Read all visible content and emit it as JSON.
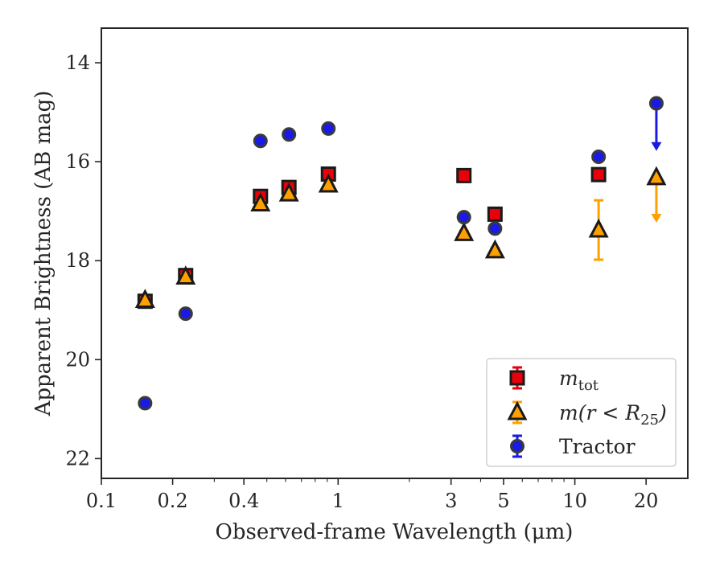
{
  "chart_data": {
    "type": "scatter",
    "xlabel": "Observed-frame Wavelength (μm)",
    "ylabel": "Apparent Brightness (AB mag)",
    "x_scale": "log",
    "xlim": [
      0.1,
      30
    ],
    "ylim": [
      22.4,
      13.3
    ],
    "y_inverted": true,
    "x_ticks": [
      0.1,
      0.2,
      0.4,
      1,
      3,
      5,
      10,
      20
    ],
    "x_tick_labels": [
      "0.1",
      "0.2",
      "0.4",
      "1",
      "3",
      "5",
      "10",
      "20"
    ],
    "y_ticks": [
      14,
      16,
      18,
      20,
      22
    ],
    "y_tick_labels": [
      "14",
      "16",
      "18",
      "20",
      "22"
    ],
    "grid": false,
    "legend_position": "bottom-right",
    "series": [
      {
        "name": "m_tot",
        "label_main": "m",
        "label_sub": "tot",
        "marker": "square",
        "color": "#e8000b",
        "edge_color": "#1a1a1a",
        "points": [
          {
            "x": 0.153,
            "y": 18.82,
            "err": 0.05
          },
          {
            "x": 0.227,
            "y": 18.3,
            "err": 0.05
          },
          {
            "x": 0.47,
            "y": 16.7,
            "err": 0.05
          },
          {
            "x": 0.62,
            "y": 16.52,
            "err": 0.05
          },
          {
            "x": 0.91,
            "y": 16.25,
            "err": 0.05
          },
          {
            "x": 3.4,
            "y": 16.28,
            "err": 0.05
          },
          {
            "x": 4.6,
            "y": 17.06,
            "err": 0.05
          },
          {
            "x": 12.6,
            "y": 16.26,
            "err": 0.05
          }
        ]
      },
      {
        "name": "m(r<R25)",
        "label_main": "m(r < R",
        "label_sub": "25",
        "label_tail": ")",
        "marker": "triangle",
        "color": "#ff9f00",
        "edge_color": "#1a1a1a",
        "points": [
          {
            "x": 0.153,
            "y": 18.8,
            "err": 0.05
          },
          {
            "x": 0.227,
            "y": 18.33,
            "err": 0.05
          },
          {
            "x": 0.47,
            "y": 16.85,
            "err": 0.05
          },
          {
            "x": 0.62,
            "y": 16.65,
            "err": 0.05
          },
          {
            "x": 0.91,
            "y": 16.47,
            "err": 0.05
          },
          {
            "x": 3.4,
            "y": 17.45,
            "err": 0.05
          },
          {
            "x": 4.6,
            "y": 17.8,
            "err": 0.05
          },
          {
            "x": 12.6,
            "y": 17.38,
            "err": 0.6
          },
          {
            "x": 22.1,
            "y": 16.32,
            "upper_limit": true,
            "arrow_to": 17.2
          }
        ]
      },
      {
        "name": "Tractor",
        "label_main": "Tractor",
        "marker": "circle",
        "color": "#1a1ae6",
        "edge_color": "#3a3a3a",
        "points": [
          {
            "x": 0.153,
            "y": 20.88,
            "err": 0.05
          },
          {
            "x": 0.227,
            "y": 19.07,
            "err": 0.05
          },
          {
            "x": 0.47,
            "y": 15.58,
            "err": 0.05
          },
          {
            "x": 0.62,
            "y": 15.45,
            "err": 0.05
          },
          {
            "x": 0.91,
            "y": 15.33,
            "err": 0.05
          },
          {
            "x": 3.4,
            "y": 17.12,
            "err": 0.05
          },
          {
            "x": 4.6,
            "y": 17.35,
            "err": 0.05
          },
          {
            "x": 12.6,
            "y": 15.9,
            "err": 0.05
          },
          {
            "x": 22.1,
            "y": 14.82,
            "upper_limit": true,
            "arrow_to": 15.75
          }
        ]
      }
    ]
  }
}
